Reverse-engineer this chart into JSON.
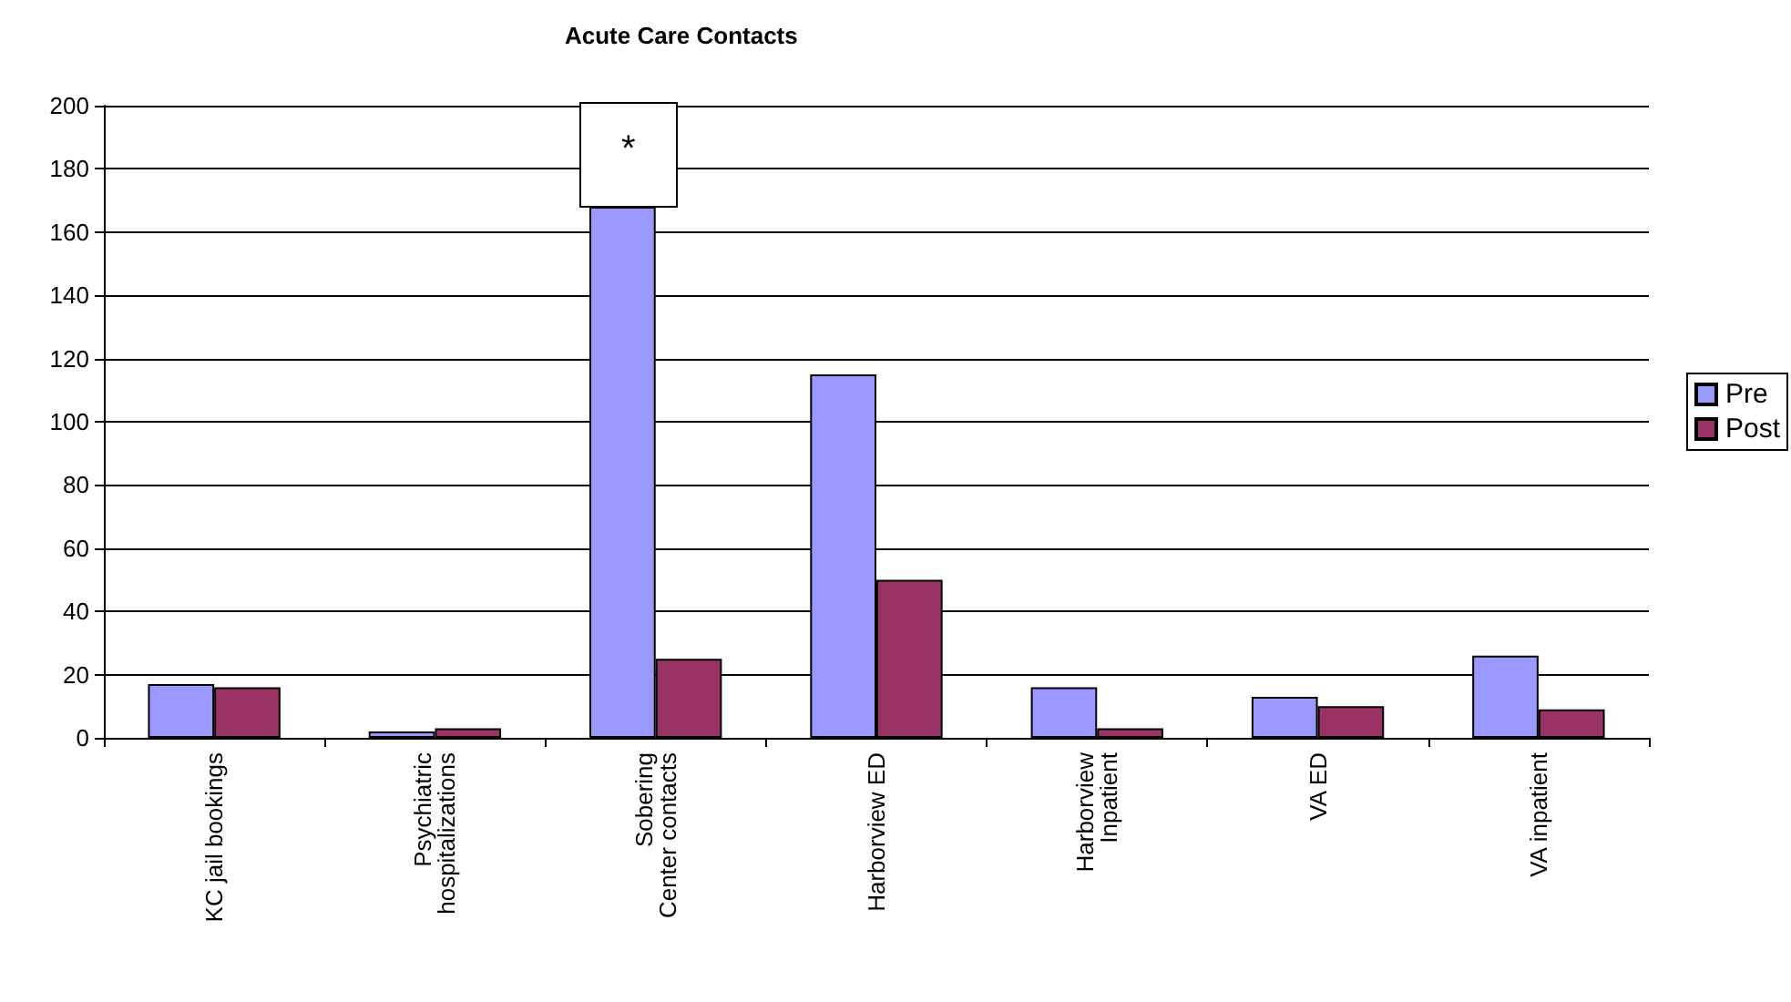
{
  "chart_data": {
    "type": "bar",
    "title": "Acute Care Contacts",
    "categories": [
      "KC jail bookings",
      "Psychiatric\nhospitalizations",
      "Sobering\nCenter contacts",
      "Harborview ED",
      "Harborview\nInpatient",
      "VA ED",
      "VA inpatient"
    ],
    "series": [
      {
        "name": "Pre",
        "color": "#9999ff",
        "values": [
          17,
          2,
          168,
          115,
          16,
          13,
          26
        ]
      },
      {
        "name": "Post",
        "color": "#993366",
        "values": [
          16,
          3,
          25,
          50,
          3,
          10,
          9
        ]
      }
    ],
    "ylim": [
      0,
      200
    ],
    "yticks": [
      0,
      20,
      40,
      60,
      80,
      100,
      120,
      140,
      160,
      180,
      200
    ],
    "grid": "y",
    "legend": "right",
    "annotations": [
      "*"
    ]
  }
}
